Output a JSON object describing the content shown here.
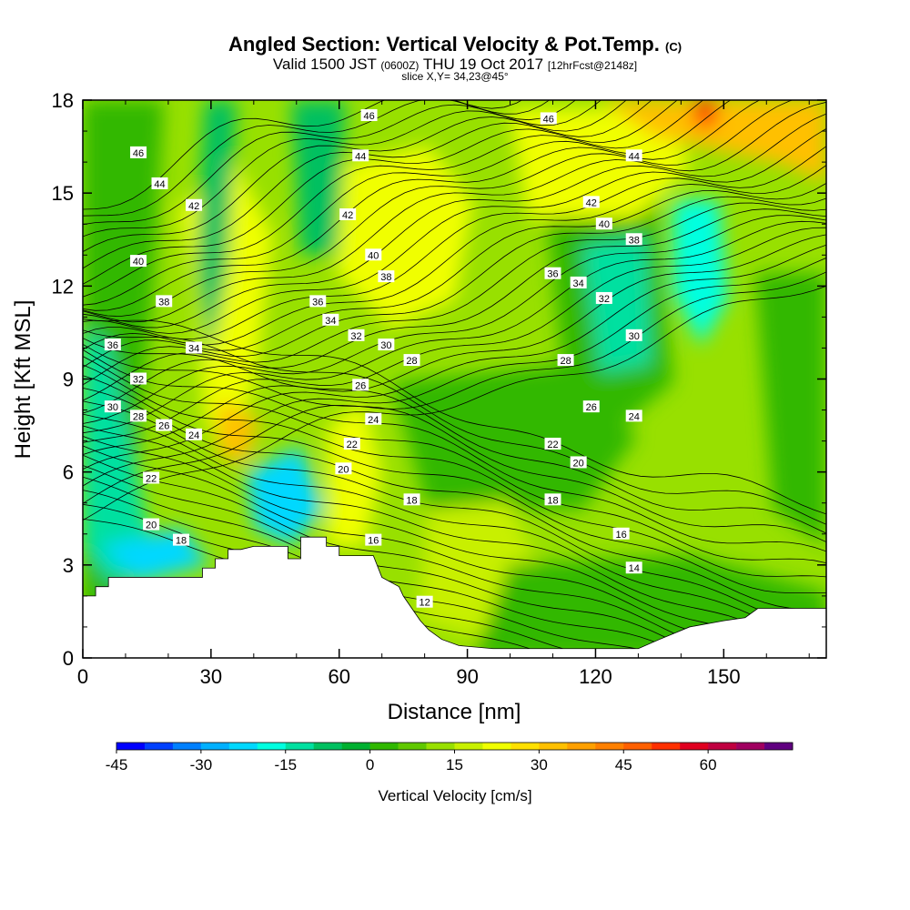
{
  "header": {
    "title_main": "Angled Section: Vertical Velocity & Pot.Temp.",
    "title_unit": "(C)",
    "valid_prefix": "Valid 1500 JST",
    "valid_zulu": "(0600Z)",
    "valid_date": "THU 19 Oct 2017",
    "valid_fcst": "[12hrFcst@2148z]",
    "slice": "slice X,Y= 34,23@45°"
  },
  "chart_data": {
    "type": "heatmap",
    "xlabel": "Distance [nm]",
    "ylabel": "Height [Kft MSL]",
    "xlim": [
      0,
      174
    ],
    "ylim": [
      0,
      18
    ],
    "xticks": [
      0,
      30,
      60,
      90,
      120,
      150
    ],
    "yticks": [
      0,
      3,
      6,
      9,
      12,
      15,
      18
    ],
    "colorbar": {
      "title": "Vertical Velocity [cm/s]",
      "min": -45,
      "max": 70,
      "step": 5,
      "tick_values": [
        -45,
        -30,
        -15,
        0,
        15,
        30,
        45,
        60
      ],
      "colors": [
        "#0000ff",
        "#0040ff",
        "#0080ff",
        "#00b0ff",
        "#00d8ff",
        "#00ffe0",
        "#00e0a0",
        "#00c060",
        "#00b030",
        "#30b800",
        "#60c800",
        "#98e000",
        "#c8f000",
        "#f0ff00",
        "#ffe000",
        "#ffc000",
        "#ffa000",
        "#ff8000",
        "#ff6000",
        "#ff3000",
        "#e00020",
        "#c00040",
        "#a00060",
        "#600080"
      ]
    },
    "terrain": [
      [
        0,
        2.0
      ],
      [
        3,
        2.0
      ],
      [
        3,
        2.3
      ],
      [
        6,
        2.3
      ],
      [
        6,
        2.6
      ],
      [
        10,
        2.6
      ],
      [
        28,
        2.6
      ],
      [
        28,
        2.9
      ],
      [
        31,
        2.9
      ],
      [
        31,
        3.2
      ],
      [
        34,
        3.2
      ],
      [
        34,
        3.5
      ],
      [
        37,
        3.5
      ],
      [
        40,
        3.6
      ],
      [
        48,
        3.6
      ],
      [
        48,
        3.2
      ],
      [
        51,
        3.2
      ],
      [
        51,
        3.9
      ],
      [
        57,
        3.9
      ],
      [
        57,
        3.6
      ],
      [
        60,
        3.6
      ],
      [
        60,
        3.3
      ],
      [
        63,
        3.3
      ],
      [
        68,
        3.3
      ],
      [
        70,
        2.6
      ],
      [
        74,
        2.3
      ],
      [
        75,
        2.0
      ],
      [
        77,
        1.6
      ],
      [
        79,
        1.2
      ],
      [
        81,
        0.9
      ],
      [
        84,
        0.6
      ],
      [
        88,
        0.4
      ],
      [
        96,
        0.3
      ],
      [
        110,
        0.3
      ],
      [
        120,
        0.3
      ],
      [
        130,
        0.3
      ],
      [
        135,
        0.6
      ],
      [
        142,
        1.0
      ],
      [
        150,
        1.2
      ],
      [
        155,
        1.3
      ],
      [
        158,
        1.6
      ],
      [
        163,
        1.6
      ],
      [
        174,
        1.6
      ]
    ],
    "theta_labels": [
      {
        "value": 46,
        "x": 13,
        "y": 16.3
      },
      {
        "value": 44,
        "x": 18,
        "y": 15.3
      },
      {
        "value": 42,
        "x": 26,
        "y": 14.6
      },
      {
        "value": 40,
        "x": 13,
        "y": 12.8
      },
      {
        "value": 38,
        "x": 19,
        "y": 11.5
      },
      {
        "value": 36,
        "x": 7,
        "y": 10.1
      },
      {
        "value": 34,
        "x": 26,
        "y": 10.0
      },
      {
        "value": 32,
        "x": 13,
        "y": 9.0
      },
      {
        "value": 30,
        "x": 7,
        "y": 8.1
      },
      {
        "value": 28,
        "x": 13,
        "y": 7.8
      },
      {
        "value": 26,
        "x": 19,
        "y": 7.5
      },
      {
        "value": 24,
        "x": 26,
        "y": 7.2
      },
      {
        "value": 22,
        "x": 16,
        "y": 5.8
      },
      {
        "value": 20,
        "x": 16,
        "y": 4.3
      },
      {
        "value": 18,
        "x": 23,
        "y": 3.8
      },
      {
        "value": 46,
        "x": 67,
        "y": 17.5
      },
      {
        "value": 44,
        "x": 65,
        "y": 16.2
      },
      {
        "value": 42,
        "x": 62,
        "y": 14.3
      },
      {
        "value": 40,
        "x": 68,
        "y": 13.0
      },
      {
        "value": 38,
        "x": 71,
        "y": 12.3
      },
      {
        "value": 36,
        "x": 55,
        "y": 11.5
      },
      {
        "value": 34,
        "x": 58,
        "y": 10.9
      },
      {
        "value": 32,
        "x": 64,
        "y": 10.4
      },
      {
        "value": 30,
        "x": 71,
        "y": 10.1
      },
      {
        "value": 28,
        "x": 77,
        "y": 9.6
      },
      {
        "value": 26,
        "x": 65,
        "y": 8.8
      },
      {
        "value": 24,
        "x": 68,
        "y": 7.7
      },
      {
        "value": 22,
        "x": 63,
        "y": 6.9
      },
      {
        "value": 20,
        "x": 61,
        "y": 6.1
      },
      {
        "value": 18,
        "x": 77,
        "y": 5.1
      },
      {
        "value": 16,
        "x": 68,
        "y": 3.8
      },
      {
        "value": 12,
        "x": 80,
        "y": 1.8
      },
      {
        "value": 46,
        "x": 109,
        "y": 17.4
      },
      {
        "value": 44,
        "x": 129,
        "y": 16.2
      },
      {
        "value": 42,
        "x": 119,
        "y": 14.7
      },
      {
        "value": 40,
        "x": 122,
        "y": 14.0
      },
      {
        "value": 38,
        "x": 129,
        "y": 13.5
      },
      {
        "value": 36,
        "x": 110,
        "y": 12.4
      },
      {
        "value": 34,
        "x": 116,
        "y": 12.1
      },
      {
        "value": 32,
        "x": 122,
        "y": 11.6
      },
      {
        "value": 30,
        "x": 129,
        "y": 10.4
      },
      {
        "value": 28,
        "x": 113,
        "y": 9.6
      },
      {
        "value": 26,
        "x": 119,
        "y": 8.1
      },
      {
        "value": 24,
        "x": 129,
        "y": 7.8
      },
      {
        "value": 22,
        "x": 110,
        "y": 6.9
      },
      {
        "value": 20,
        "x": 116,
        "y": 6.3
      },
      {
        "value": 18,
        "x": 110,
        "y": 5.1
      },
      {
        "value": 16,
        "x": 126,
        "y": 4.0
      },
      {
        "value": 14,
        "x": 129,
        "y": 2.9
      }
    ]
  }
}
